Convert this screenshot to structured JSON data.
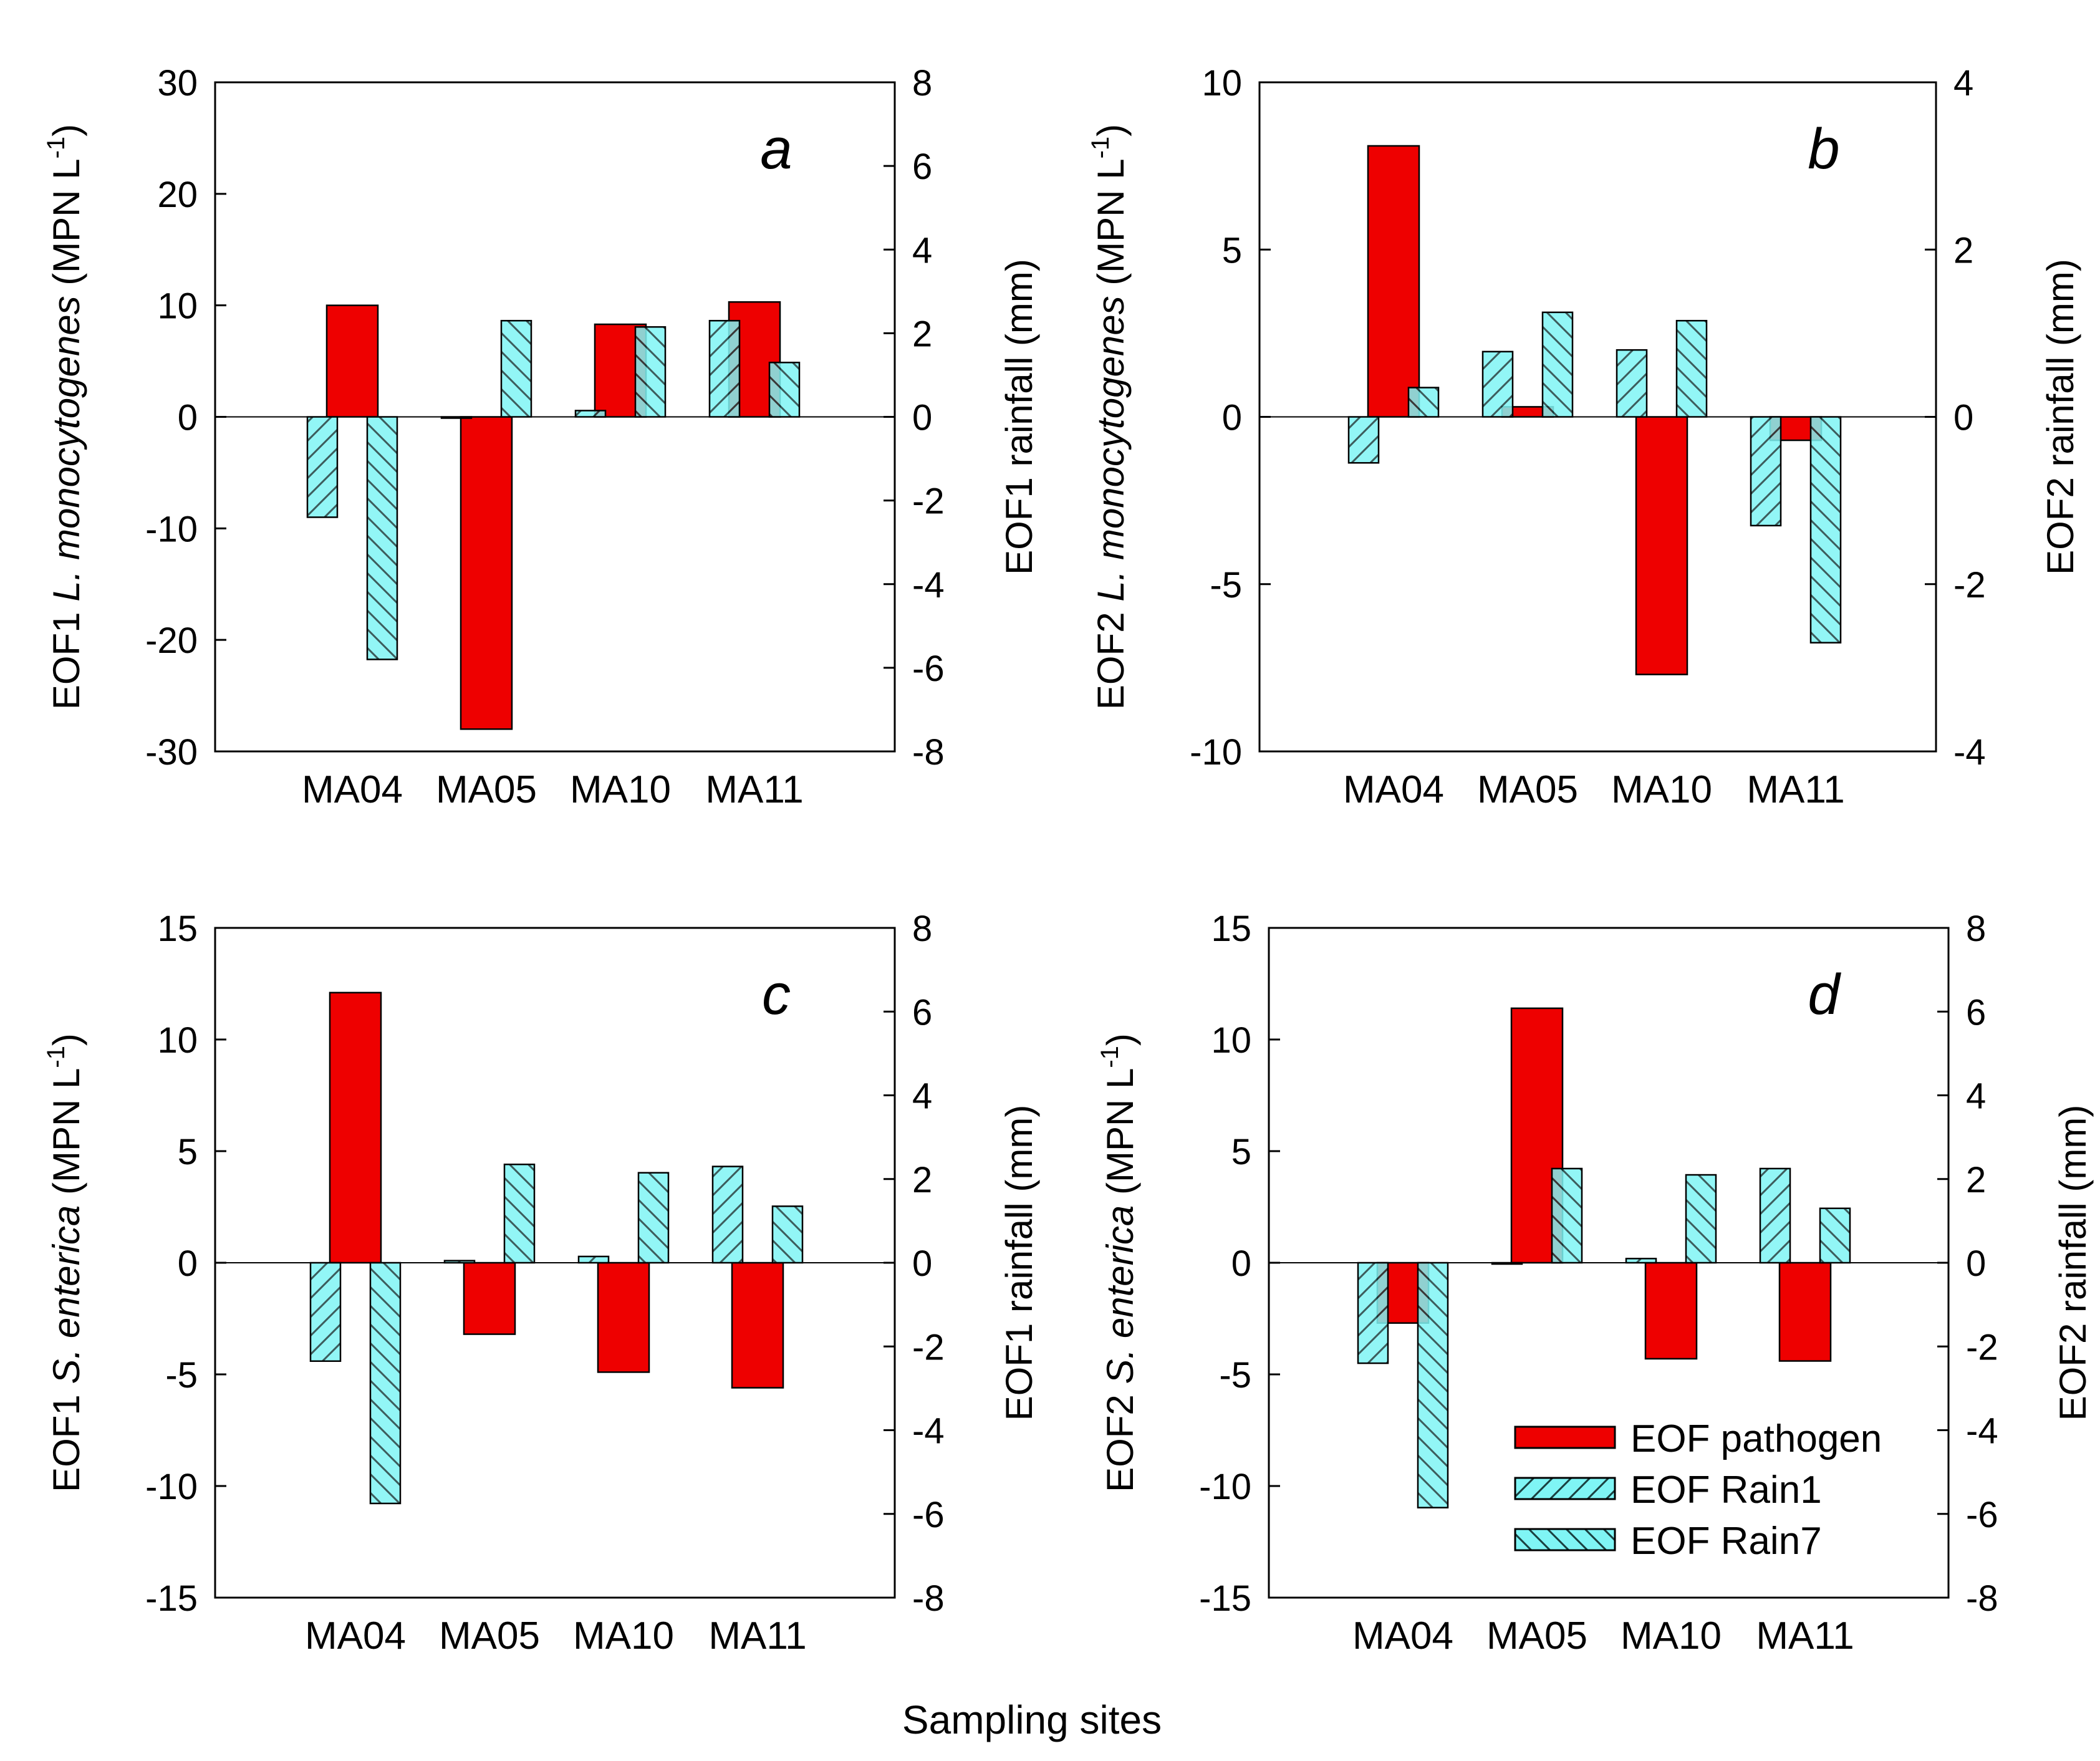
{
  "figure": {
    "xlabel": "Sampling sites"
  },
  "legend": {
    "placement": "bottom-right of panel d",
    "entries": [
      {
        "label": "EOF pathogen",
        "key": "pathogen"
      },
      {
        "label": "EOF Rain1",
        "key": "rain1"
      },
      {
        "label": "EOF Rain7",
        "key": "rain7"
      }
    ]
  },
  "colors": {
    "pathogen": "#ee0000",
    "rain": "#7ff5f5",
    "rain_hatch": "#1a4040",
    "axis": "#000000"
  },
  "chart_data": [
    {
      "type": "bar",
      "panel": "a",
      "categories": [
        "MA04",
        "MA05",
        "MA10",
        "MA11"
      ],
      "ylabel_parts": [
        "EOF1 ",
        "L. monocytogenes",
        " (MPN L",
        "-1",
        ")"
      ],
      "y2label": "EOF1 rainfall (mm)",
      "ylim": [
        -30,
        30
      ],
      "yticks": [
        -30,
        -20,
        -10,
        0,
        10,
        20,
        30
      ],
      "y2lim": [
        -8,
        8
      ],
      "y2ticks": [
        -8,
        -6,
        -4,
        -2,
        0,
        2,
        4,
        6,
        8
      ],
      "grid": false,
      "series": [
        {
          "name": "EOF pathogen",
          "axis": "left",
          "values": [
            10,
            -28,
            8.3,
            10.3
          ]
        },
        {
          "name": "EOF Rain1",
          "axis": "right",
          "values": [
            -2.4,
            0,
            0.15,
            2.3
          ]
        },
        {
          "name": "EOF Rain7",
          "axis": "right",
          "values": [
            -5.8,
            2.3,
            2.15,
            1.3
          ]
        }
      ]
    },
    {
      "type": "bar",
      "panel": "b",
      "categories": [
        "MA04",
        "MA05",
        "MA10",
        "MA11"
      ],
      "ylabel_parts": [
        "EOF2 ",
        "L. monocytogenes",
        " (MPN L",
        "-1",
        ")"
      ],
      "y2label": "EOF2 rainfall (mm)",
      "ylim": [
        -10,
        10
      ],
      "yticks": [
        -10,
        -5,
        0,
        5,
        10
      ],
      "y2lim": [
        -4,
        4
      ],
      "y2ticks": [
        -4,
        -2,
        0,
        2,
        4
      ],
      "grid": false,
      "series": [
        {
          "name": "EOF pathogen",
          "axis": "left",
          "values": [
            8.1,
            0.3,
            -7.7,
            -0.7
          ]
        },
        {
          "name": "EOF Rain1",
          "axis": "right",
          "values": [
            -0.55,
            0.78,
            0.8,
            -1.3
          ]
        },
        {
          "name": "EOF Rain7",
          "axis": "right",
          "values": [
            0.35,
            1.25,
            1.15,
            -2.7
          ]
        }
      ]
    },
    {
      "type": "bar",
      "panel": "c",
      "categories": [
        "MA04",
        "MA05",
        "MA10",
        "MA11"
      ],
      "ylabel_parts": [
        "EOF1 ",
        "S. enterica",
        " (MPN L",
        "-1",
        ")"
      ],
      "y2label": "EOF1 rainfall (mm)",
      "ylim": [
        -15,
        15
      ],
      "yticks": [
        -15,
        -10,
        -5,
        0,
        5,
        10,
        15
      ],
      "y2lim": [
        -8,
        8
      ],
      "y2ticks": [
        -8,
        -6,
        -4,
        -2,
        0,
        2,
        4,
        6,
        8
      ],
      "grid": false,
      "series": [
        {
          "name": "EOF pathogen",
          "axis": "left",
          "values": [
            12.1,
            -3.2,
            -4.9,
            -5.6
          ]
        },
        {
          "name": "EOF Rain1",
          "axis": "right",
          "values": [
            -2.35,
            0.05,
            0.15,
            2.3
          ]
        },
        {
          "name": "EOF Rain7",
          "axis": "right",
          "values": [
            -5.75,
            2.35,
            2.15,
            1.35
          ]
        }
      ]
    },
    {
      "type": "bar",
      "panel": "d",
      "categories": [
        "MA04",
        "MA05",
        "MA10",
        "MA11"
      ],
      "ylabel_parts": [
        "EOF2 ",
        "S. enterica",
        " (MPN L",
        "-1",
        ")"
      ],
      "y2label": "EOF2 rainfall (mm)",
      "ylim": [
        -15,
        15
      ],
      "yticks": [
        -15,
        -10,
        -5,
        0,
        5,
        10,
        15
      ],
      "y2lim": [
        -8,
        8
      ],
      "y2ticks": [
        -8,
        -6,
        -4,
        -2,
        0,
        2,
        4,
        6,
        8
      ],
      "grid": false,
      "series": [
        {
          "name": "EOF pathogen",
          "axis": "left",
          "values": [
            -2.7,
            11.4,
            -4.3,
            -4.4
          ]
        },
        {
          "name": "EOF Rain1",
          "axis": "right",
          "values": [
            -2.4,
            0,
            0.1,
            2.25
          ]
        },
        {
          "name": "EOF Rain7",
          "axis": "right",
          "values": [
            -5.85,
            2.25,
            2.1,
            1.3
          ]
        }
      ]
    }
  ]
}
